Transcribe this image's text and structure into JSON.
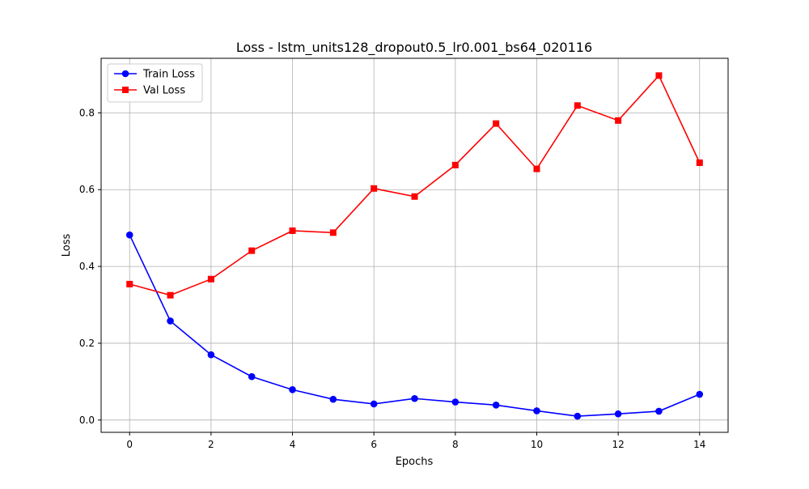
{
  "chart_data": {
    "type": "line",
    "title": "Loss - lstm_units128_dropout0.5_lr0.001_bs64_020116",
    "xlabel": "Epochs",
    "ylabel": "Loss",
    "xlim": [
      -0.7,
      14.7
    ],
    "ylim": [
      -0.032,
      0.942
    ],
    "xticks": [
      0,
      2,
      4,
      6,
      8,
      10,
      12,
      14
    ],
    "xtick_labels": [
      "0",
      "2",
      "4",
      "6",
      "8",
      "10",
      "12",
      "14"
    ],
    "yticks": [
      0.0,
      0.2,
      0.4,
      0.6,
      0.8
    ],
    "ytick_labels": [
      "0.0",
      "0.2",
      "0.4",
      "0.6",
      "0.8"
    ],
    "grid": true,
    "legend_position": "top-left",
    "x": [
      0,
      1,
      2,
      3,
      4,
      5,
      6,
      7,
      8,
      9,
      10,
      11,
      12,
      13,
      14
    ],
    "series": [
      {
        "name": "Train Loss",
        "color": "#0000ff",
        "marker": "circle",
        "values": [
          0.482,
          0.258,
          0.17,
          0.113,
          0.079,
          0.054,
          0.042,
          0.056,
          0.047,
          0.039,
          0.024,
          0.01,
          0.016,
          0.023,
          0.067
        ]
      },
      {
        "name": "Val Loss",
        "color": "#ff0000",
        "marker": "square",
        "values": [
          0.354,
          0.325,
          0.367,
          0.441,
          0.493,
          0.488,
          0.603,
          0.582,
          0.664,
          0.772,
          0.654,
          0.819,
          0.78,
          0.897,
          0.67
        ]
      }
    ]
  }
}
